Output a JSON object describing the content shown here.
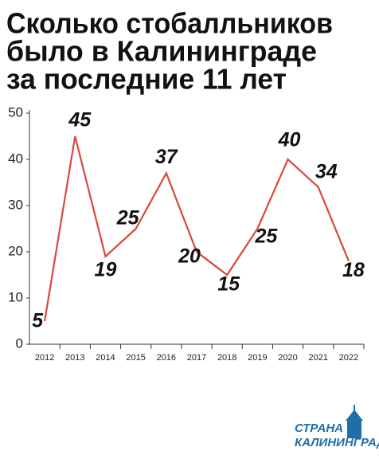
{
  "chart_data": {
    "type": "line",
    "title": [
      "Сколько стобалльников",
      "было в Калининграде",
      "за последние 11 лет"
    ],
    "categories": [
      "2012",
      "2013",
      "2014",
      "2015",
      "2016",
      "2017",
      "2018",
      "2019",
      "2020",
      "2021",
      "2022"
    ],
    "series": [
      {
        "color": "#d9483b",
        "values": [
          5,
          45,
          19,
          25,
          37,
          20,
          15,
          25,
          40,
          34,
          18
        ]
      }
    ],
    "ylim": [
      0,
      50
    ],
    "yticks": [
      0,
      10,
      20,
      30,
      40,
      50
    ],
    "grid": false
  },
  "logo": [
    "СТРАНА",
    "КАЛИНИНГРАД"
  ]
}
